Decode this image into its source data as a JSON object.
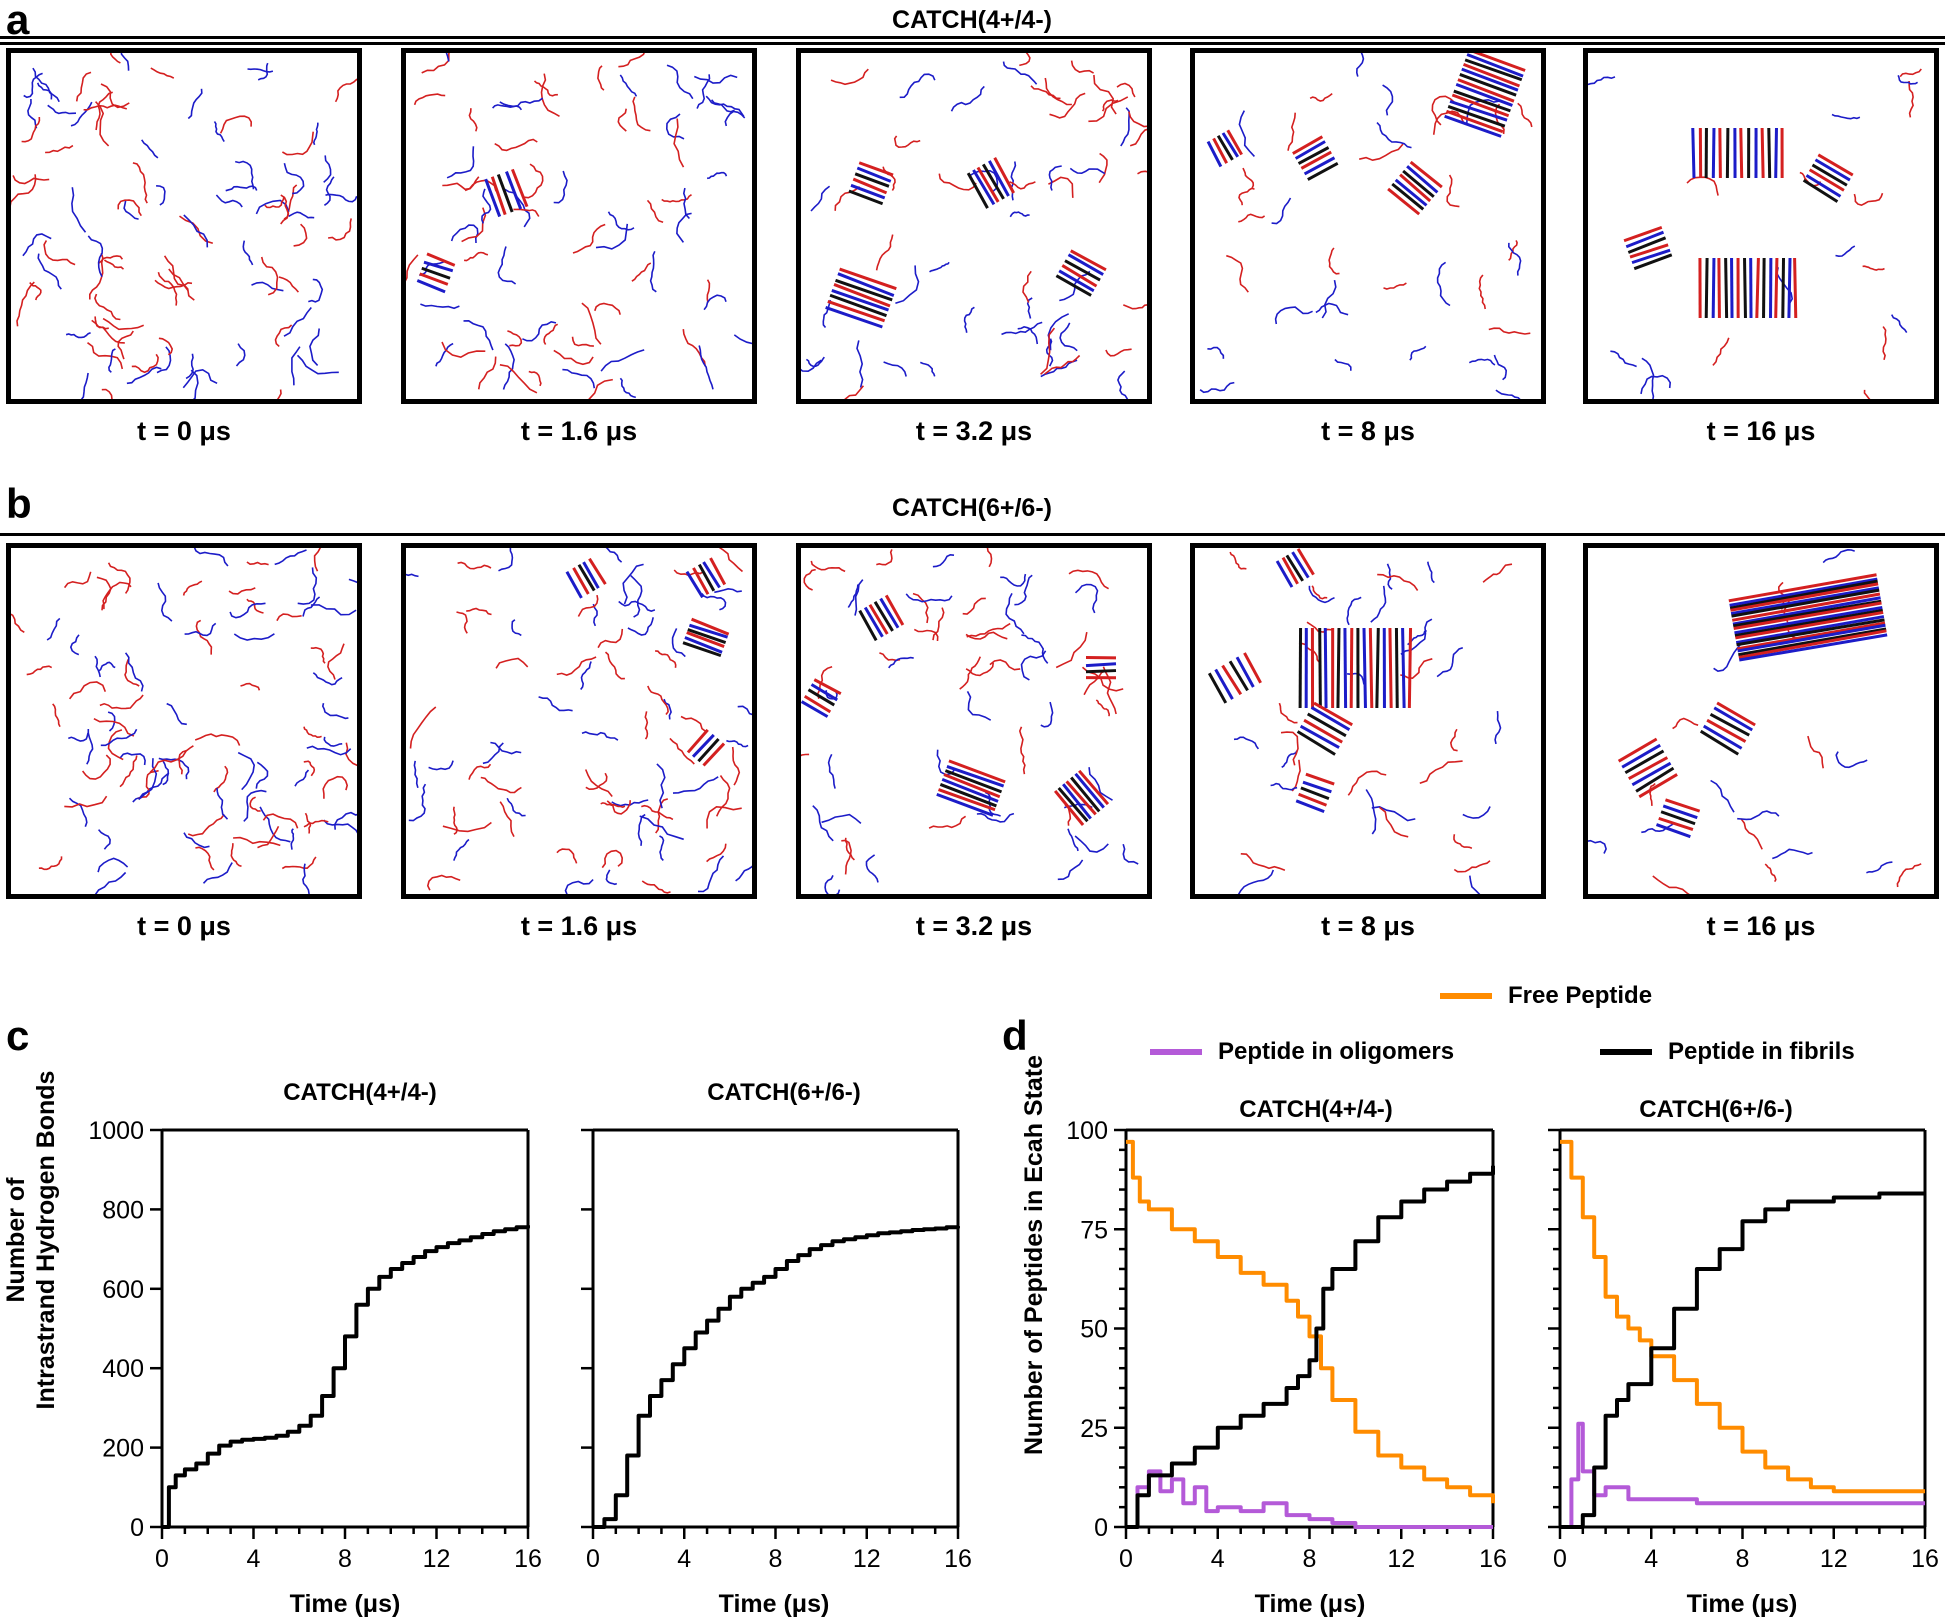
{
  "panel_a": {
    "letter": "a",
    "title": "CATCH(4+/4-)",
    "snapshots": [
      {
        "label": "t = 0 μs"
      },
      {
        "label": "t = 1.6 μs"
      },
      {
        "label": "t = 3.2 μs"
      },
      {
        "label": "t = 8 μs"
      },
      {
        "label": "t = 16 μs"
      }
    ]
  },
  "panel_b": {
    "letter": "b",
    "title": "CATCH(6+/6-)",
    "snapshots": [
      {
        "label": "t = 0 μs"
      },
      {
        "label": "t = 1.6 μs"
      },
      {
        "label": "t = 3.2 μs"
      },
      {
        "label": "t = 8 μs"
      },
      {
        "label": "t = 16 μs"
      }
    ]
  },
  "colors": {
    "cationic": "#d42020",
    "anionic": "#1c1cc8",
    "free": "#ff8c00",
    "oligomer": "#b45ad8",
    "fibril": "#000000"
  },
  "panel_c": {
    "letter": "c",
    "ylabel_line1": "Number of",
    "ylabel_line2": "Intrastrand Hydrogen Bonds",
    "xlabel": "Time (μs)"
  },
  "panel_d": {
    "letter": "d",
    "ylabel": "Number of Peptides in Ecah State",
    "xlabel": "Time (μs)",
    "legend": {
      "free": "Free Peptide",
      "oligomer": "Peptide in oligomers",
      "fibril": "Peptide in fibrils"
    }
  },
  "chart_data": [
    {
      "type": "line",
      "title": "CATCH(4+/4-)",
      "xlabel": "Time (μs)",
      "ylabel": "Number of Intrastrand Hydrogen Bonds",
      "xlim": [
        0,
        16
      ],
      "ylim": [
        0,
        1000
      ],
      "xticks": [
        0,
        4,
        8,
        12,
        16
      ],
      "yticks": [
        0,
        200,
        400,
        600,
        800,
        1000
      ],
      "series": [
        {
          "x": [
            0,
            0.3,
            0.6,
            1,
            1.5,
            2,
            2.5,
            3,
            3.5,
            4,
            4.5,
            5,
            5.5,
            6,
            6.5,
            7,
            7.5,
            8,
            8.5,
            9,
            9.5,
            10,
            10.5,
            11,
            11.5,
            12,
            12.5,
            13,
            13.5,
            14,
            14.5,
            15,
            15.5,
            16
          ],
          "y": [
            0,
            100,
            130,
            145,
            160,
            185,
            205,
            215,
            220,
            222,
            225,
            230,
            240,
            255,
            280,
            330,
            400,
            480,
            560,
            600,
            630,
            650,
            665,
            680,
            695,
            705,
            715,
            722,
            730,
            738,
            745,
            750,
            755,
            760
          ]
        }
      ]
    },
    {
      "type": "line",
      "title": "CATCH(6+/6-)",
      "xlabel": "Time (μs)",
      "xlim": [
        0,
        16
      ],
      "ylim": [
        0,
        1000
      ],
      "xticks": [
        0,
        4,
        8,
        12,
        16
      ],
      "series": [
        {
          "x": [
            0,
            0.5,
            1,
            1.5,
            2,
            2.5,
            3,
            3.5,
            4,
            4.5,
            5,
            5.5,
            6,
            6.5,
            7,
            7.5,
            8,
            8.5,
            9,
            9.5,
            10,
            10.5,
            11,
            11.5,
            12,
            12.5,
            13,
            13.5,
            14,
            14.5,
            15,
            15.5,
            16
          ],
          "y": [
            0,
            20,
            80,
            180,
            280,
            330,
            370,
            410,
            450,
            490,
            520,
            550,
            580,
            600,
            615,
            630,
            650,
            670,
            685,
            700,
            710,
            720,
            725,
            730,
            735,
            740,
            742,
            745,
            748,
            750,
            752,
            755,
            758
          ]
        }
      ]
    },
    {
      "type": "line",
      "title": "CATCH(4+/4-)",
      "xlabel": "Time (μs)",
      "ylabel": "Number of Peptides in Ecah State",
      "xlim": [
        0,
        16
      ],
      "ylim": [
        0,
        100
      ],
      "xticks": [
        0,
        4,
        8,
        12,
        16
      ],
      "yticks": [
        0,
        25,
        50,
        75,
        100
      ],
      "series": [
        {
          "name": "Free Peptide",
          "x": [
            0,
            0.3,
            0.6,
            1,
            2,
            3,
            4,
            5,
            6,
            7,
            7.5,
            8,
            8.5,
            9,
            10,
            11,
            12,
            13,
            14,
            15,
            16
          ],
          "y": [
            97,
            88,
            82,
            80,
            75,
            72,
            68,
            64,
            61,
            57,
            53,
            48,
            40,
            32,
            24,
            18,
            15,
            12,
            10,
            8,
            6
          ]
        },
        {
          "name": "Peptide in oligomers",
          "x": [
            0,
            0.5,
            1,
            1.5,
            2,
            2.5,
            3,
            3.5,
            4,
            5,
            6,
            7,
            8,
            9,
            10,
            12,
            14,
            16
          ],
          "y": [
            0,
            10,
            14,
            9,
            12,
            6,
            10,
            4,
            5,
            4,
            6,
            3,
            2,
            1,
            0,
            0,
            0,
            0
          ]
        },
        {
          "name": "Peptide in fibrils",
          "x": [
            0,
            0.5,
            1,
            2,
            3,
            4,
            5,
            6,
            7,
            7.5,
            8,
            8.3,
            8.6,
            9,
            10,
            11,
            12,
            13,
            14,
            15,
            16
          ],
          "y": [
            0,
            8,
            13,
            16,
            20,
            25,
            28,
            31,
            35,
            38,
            42,
            50,
            60,
            65,
            72,
            78,
            82,
            85,
            87,
            89,
            91
          ]
        }
      ]
    },
    {
      "type": "line",
      "title": "CATCH(6+/6-)",
      "xlabel": "Time (μs)",
      "xlim": [
        0,
        16
      ],
      "ylim": [
        0,
        100
      ],
      "xticks": [
        0,
        4,
        8,
        12,
        16
      ],
      "series": [
        {
          "name": "Free Peptide",
          "x": [
            0,
            0.5,
            1,
            1.5,
            2,
            2.5,
            3,
            3.5,
            4,
            5,
            6,
            7,
            8,
            9,
            10,
            11,
            12,
            14,
            16
          ],
          "y": [
            97,
            88,
            78,
            68,
            58,
            53,
            50,
            47,
            43,
            37,
            31,
            25,
            19,
            15,
            12,
            10,
            9,
            9,
            9
          ]
        },
        {
          "name": "Peptide in oligomers",
          "x": [
            0,
            0.5,
            0.8,
            1,
            1.5,
            2,
            3,
            4,
            6,
            8,
            10,
            12,
            14,
            16
          ],
          "y": [
            0,
            12,
            26,
            14,
            8,
            10,
            7,
            7,
            6,
            6,
            6,
            6,
            6,
            6
          ]
        },
        {
          "name": "Peptide in fibrils",
          "x": [
            0,
            1,
            1.5,
            2,
            2.5,
            3,
            4,
            5,
            6,
            7,
            8,
            9,
            10,
            12,
            13,
            14,
            16
          ],
          "y": [
            0,
            3,
            15,
            28,
            32,
            36,
            45,
            55,
            65,
            70,
            77,
            80,
            82,
            83,
            83,
            84,
            84
          ]
        }
      ]
    }
  ]
}
